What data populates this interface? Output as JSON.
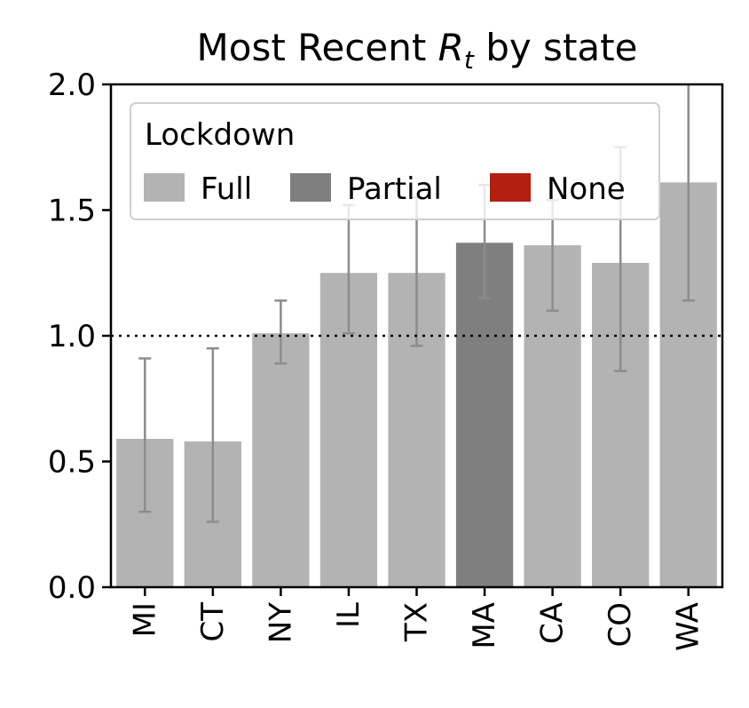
{
  "chart_data": {
    "type": "bar",
    "title_prefix": "Most Recent ",
    "title_var": "R",
    "title_sub": "t",
    "title_suffix": " by state",
    "xlabel": "",
    "ylabel": "",
    "ylim": [
      0,
      2.0
    ],
    "yticks": [
      "0.0",
      "0.5",
      "1.0",
      "1.5",
      "2.0"
    ],
    "ytick_values": [
      0,
      0.5,
      1.0,
      1.5,
      2.0
    ],
    "reference_line": 1.0,
    "grid": false,
    "categories": [
      "MI",
      "CT",
      "NY",
      "IL",
      "TX",
      "MA",
      "CA",
      "CO",
      "WA"
    ],
    "values": [
      0.59,
      0.58,
      1.01,
      1.25,
      1.25,
      1.37,
      1.36,
      1.29,
      1.61
    ],
    "lower": [
      0.3,
      0.26,
      0.89,
      1.01,
      0.96,
      1.15,
      1.1,
      0.86,
      1.14
    ],
    "upper": [
      0.91,
      0.95,
      1.14,
      1.52,
      1.55,
      1.6,
      1.54,
      1.75,
      2.05
    ],
    "lockdown": [
      "Full",
      "Full",
      "Full",
      "Full",
      "Full",
      "Partial",
      "Full",
      "Full",
      "Full"
    ],
    "legend": {
      "title": "Lockdown",
      "placement": "top",
      "entries": [
        {
          "label": "Full",
          "color": "#b3b3b3"
        },
        {
          "label": "Partial",
          "color": "#7f7f7f"
        },
        {
          "label": "None",
          "color": "#b22010"
        }
      ]
    },
    "colors": {
      "Full": "#b3b3b3",
      "Partial": "#7f7f7f",
      "None": "#b22010",
      "errorbar": "#8c8c8c"
    }
  }
}
